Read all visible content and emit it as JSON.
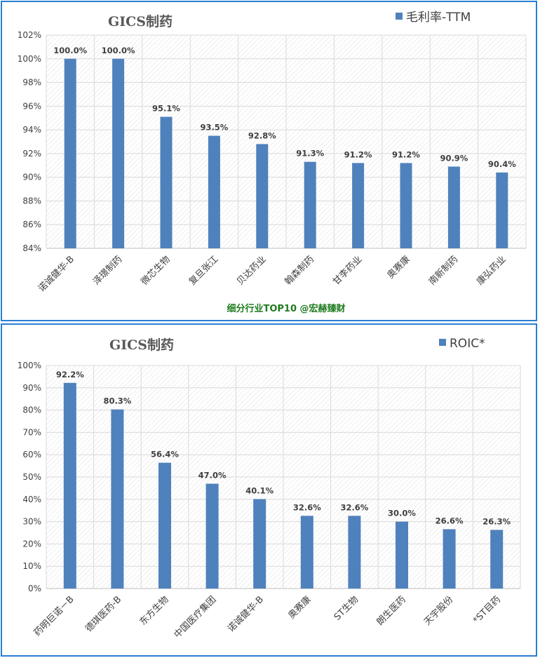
{
  "colors": {
    "bar": "#4f81bd",
    "border": "#2a7fd4",
    "watermark": "#1e7b1e",
    "grid": "#d9d9d9"
  },
  "chart_data": [
    {
      "type": "bar",
      "title": "GICS制药",
      "subtitle": "细分行业TOP10 @宏赫臻财",
      "series": [
        {
          "name": "毛利率-TTM",
          "values": [
            100.0,
            100.0,
            95.1,
            93.5,
            92.8,
            91.3,
            91.2,
            91.2,
            90.9,
            90.4
          ]
        }
      ],
      "categories": [
        "诺诚健华-B",
        "泽璟制药",
        "微芯生物",
        "复旦张江",
        "贝达药业",
        "翰森制药",
        "甘李药业",
        "奥赛康",
        "南新制药",
        "康弘药业"
      ],
      "data_labels": [
        "100.0%",
        "100.0%",
        "95.1%",
        "93.5%",
        "92.8%",
        "91.3%",
        "91.2%",
        "91.2%",
        "90.9%",
        "90.4%"
      ],
      "ylim": [
        84,
        102
      ],
      "yticks": [
        "84%",
        "86%",
        "88%",
        "90%",
        "92%",
        "94%",
        "96%",
        "98%",
        "100%",
        "102%"
      ],
      "grid": true,
      "legend_position": "top-right"
    },
    {
      "type": "bar",
      "title": "GICS制药",
      "series": [
        {
          "name": "ROIC*",
          "values": [
            92.2,
            80.3,
            56.4,
            47.0,
            40.1,
            32.6,
            32.6,
            30.0,
            26.6,
            26.3
          ]
        }
      ],
      "categories": [
        "药明巨诺－B",
        "德琪医药-B",
        "东方生物",
        "中国医疗集团",
        "诺诚健华-B",
        "奥赛康",
        "ST生物",
        "朗生医药",
        "天宇股份",
        "*ST目药"
      ],
      "data_labels": [
        "92.2%",
        "80.3%",
        "56.4%",
        "47.0%",
        "40.1%",
        "32.6%",
        "32.6%",
        "30.0%",
        "26.6%",
        "26.3%"
      ],
      "ylim": [
        0,
        100
      ],
      "yticks": [
        "0%",
        "10%",
        "20%",
        "30%",
        "40%",
        "50%",
        "60%",
        "70%",
        "80%",
        "90%",
        "100%"
      ],
      "grid": true,
      "legend_position": "top-right"
    }
  ]
}
